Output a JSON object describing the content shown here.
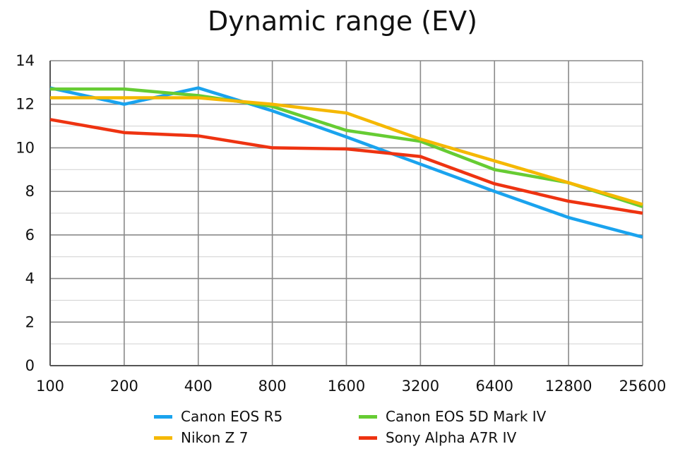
{
  "chart_data": {
    "type": "line",
    "title": "Dynamic range (EV)",
    "xlabel": "",
    "ylabel": "",
    "categories": [
      "100",
      "200",
      "400",
      "800",
      "1600",
      "3200",
      "6400",
      "12800",
      "25600"
    ],
    "ylim": [
      0,
      14
    ],
    "yticks": [
      0,
      2,
      4,
      6,
      8,
      10,
      12,
      14
    ],
    "grid": true,
    "legend_position": "bottom",
    "series": [
      {
        "name": "Canon EOS R5",
        "color": "#1aa3ee",
        "values": [
          12.75,
          12.0,
          12.75,
          11.7,
          10.5,
          9.25,
          8.0,
          6.8,
          5.9
        ]
      },
      {
        "name": "Canon EOS 5D Mark IV",
        "color": "#66cc33",
        "values": [
          12.7,
          12.7,
          12.4,
          11.9,
          10.8,
          10.3,
          9.0,
          8.4,
          7.3
        ]
      },
      {
        "name": "Nikon Z 7",
        "color": "#f5b800",
        "values": [
          12.3,
          12.3,
          12.3,
          12.0,
          11.6,
          10.4,
          9.4,
          8.4,
          7.4
        ]
      },
      {
        "name": "Sony Alpha A7R IV",
        "color": "#ee3311",
        "values": [
          11.3,
          10.7,
          10.55,
          10.0,
          9.95,
          9.6,
          8.35,
          7.55,
          7.0
        ]
      }
    ]
  }
}
